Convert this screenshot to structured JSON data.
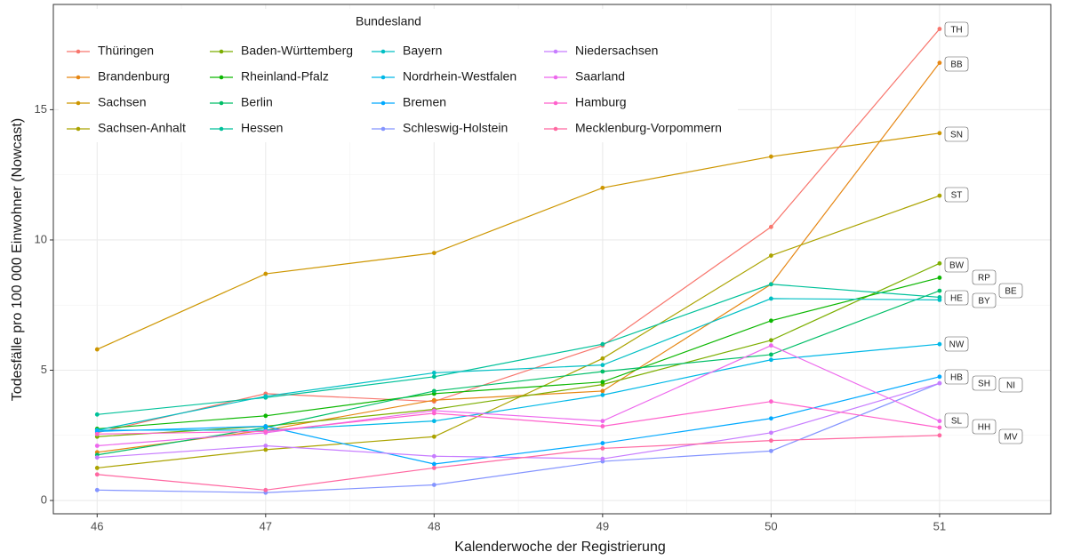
{
  "chart_data": {
    "type": "line",
    "xlabel": "Kalenderwoche der Registrierung",
    "ylabel": "Todesfälle pro 100 000 Einwohner (Nowcast)",
    "legend_title": "Bundesland",
    "x": [
      46,
      47,
      48,
      49,
      50,
      51
    ],
    "xlim": [
      45.74,
      51.66
    ],
    "xticks": [
      46,
      47,
      48,
      49,
      50,
      51
    ],
    "ylim": [
      -0.51,
      19.04
    ],
    "yticks": [
      0,
      5,
      10,
      15
    ],
    "grid": true,
    "legend": "top-left",
    "series": [
      {
        "name": "Thüringen",
        "end_label": "TH",
        "color": "#F8766D",
        "values": [
          2.6,
          4.1,
          3.8,
          5.95,
          10.5,
          18.1
        ]
      },
      {
        "name": "Brandenburg",
        "end_label": "BB",
        "color": "#E68613",
        "values": [
          1.85,
          2.7,
          3.85,
          4.2,
          8.3,
          16.8
        ]
      },
      {
        "name": "Sachsen",
        "end_label": "SN",
        "color": "#CD9600",
        "values": [
          5.8,
          8.7,
          9.5,
          12.0,
          13.2,
          14.1
        ]
      },
      {
        "name": "Sachsen-Anhalt",
        "end_label": "ST",
        "color": "#ABA300",
        "values": [
          1.25,
          1.95,
          2.45,
          5.45,
          9.4,
          11.7
        ]
      },
      {
        "name": "Baden-Württemberg",
        "end_label": "BW",
        "color": "#7CAE00",
        "values": [
          2.45,
          2.85,
          3.5,
          4.45,
          6.15,
          9.1
        ]
      },
      {
        "name": "Rheinland-Pfalz",
        "end_label": "RP",
        "color": "#0CB702",
        "values": [
          2.75,
          3.25,
          4.1,
          4.55,
          6.9,
          8.55
        ]
      },
      {
        "name": "Berlin",
        "end_label": "BE",
        "color": "#00BE67",
        "values": [
          1.75,
          2.8,
          4.2,
          4.95,
          5.6,
          8.05
        ]
      },
      {
        "name": "Hessen",
        "end_label": "HE",
        "color": "#00C19A",
        "values": [
          3.3,
          3.95,
          4.75,
          6.0,
          8.3,
          7.8
        ]
      },
      {
        "name": "Bayern",
        "end_label": "BY",
        "color": "#00BFC4",
        "values": [
          2.7,
          4.0,
          4.9,
          5.2,
          7.75,
          7.7
        ]
      },
      {
        "name": "Nordrhein-Westfalen",
        "end_label": "NW",
        "color": "#00B8E7",
        "values": [
          2.7,
          2.7,
          3.05,
          4.05,
          5.4,
          6.0
        ]
      },
      {
        "name": "Bremen",
        "end_label": "HB",
        "color": "#00A9FF",
        "values": [
          2.65,
          2.85,
          1.4,
          2.2,
          3.15,
          4.75
        ]
      },
      {
        "name": "Schleswig-Holstein",
        "end_label": "SH",
        "color": "#8494FF",
        "values": [
          0.4,
          0.3,
          0.6,
          1.5,
          1.9,
          4.5
        ]
      },
      {
        "name": "Niedersachsen",
        "end_label": "NI",
        "color": "#C77CFF",
        "values": [
          1.65,
          2.1,
          1.7,
          1.6,
          2.6,
          4.5
        ]
      },
      {
        "name": "Saarland",
        "end_label": "SL",
        "color": "#ED68ED",
        "values": [
          2.1,
          2.6,
          3.45,
          3.05,
          5.95,
          3.05
        ]
      },
      {
        "name": "Hamburg",
        "end_label": "HH",
        "color": "#FF61CC",
        "values": [
          2.55,
          2.65,
          3.35,
          2.85,
          3.8,
          2.8
        ]
      },
      {
        "name": "Mecklenburg-Vorpommern",
        "end_label": "MV",
        "color": "#FF68A1",
        "values": [
          1.0,
          0.4,
          1.25,
          2.0,
          2.3,
          2.5
        ]
      }
    ]
  }
}
